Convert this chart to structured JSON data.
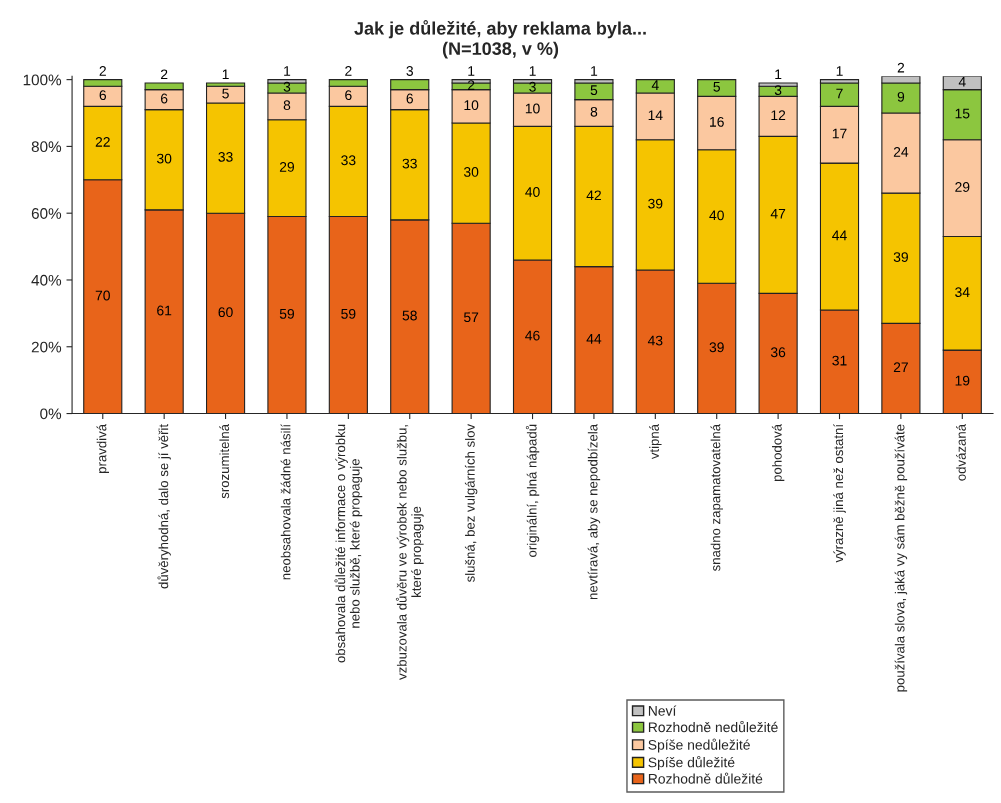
{
  "chart_data": {
    "type": "bar",
    "title": "Jak je důležité, aby reklama byla...",
    "subtitle": "(N=1038, v %)",
    "categories": [
      "pravdivá",
      "důvěryhodná, dalo se jí věřit",
      "srozumitelná",
      "neobsahovala žádné násilí",
      "obsahovala důležité informace o výrobku\nnebo službě, které propaguje",
      "vzbuzovala důvěru ve výrobek nebo službu,\nkteré propaguje",
      "slušná, bez vulgárních slov",
      "originální, plná nápadů",
      "nevtíravá, aby se nepodbízela",
      "vtipná",
      "snadno zapamatovatelná",
      "pohodová",
      "výrazně jiná než ostatní",
      "používala slova, jaká vy sám běžně používáte",
      "odvázaná"
    ],
    "stacked": true,
    "series": [
      {
        "name": "Rozhodně důležité",
        "color": "#e8641a",
        "values": [
          70,
          61,
          60,
          59,
          59,
          58,
          57,
          46,
          44,
          43,
          39,
          36,
          31,
          27,
          19
        ]
      },
      {
        "name": "Spíše důležité",
        "color": "#f5c400",
        "values": [
          22,
          30,
          33,
          29,
          33,
          33,
          30,
          40,
          42,
          39,
          40,
          47,
          44,
          39,
          34
        ]
      },
      {
        "name": "Spíše nedůležité",
        "color": "#fbc8a0",
        "values": [
          6,
          6,
          5,
          8,
          6,
          6,
          10,
          10,
          8,
          14,
          16,
          12,
          17,
          24,
          29
        ]
      },
      {
        "name": "Rozhodně nedůležité",
        "color": "#8cc63f",
        "values": [
          2,
          2,
          1,
          3,
          2,
          3,
          2,
          3,
          5,
          4,
          5,
          3,
          7,
          9,
          15
        ]
      },
      {
        "name": "Neví",
        "color": "#c0c0c0",
        "values": [
          null,
          null,
          null,
          1,
          null,
          null,
          1,
          1,
          1,
          null,
          null,
          1,
          1,
          2,
          4
        ]
      }
    ],
    "ylim": [
      0,
      101
    ],
    "yticks": [
      {
        "value": 0,
        "label": "0%"
      },
      {
        "value": 20,
        "label": "20%"
      },
      {
        "value": 40,
        "label": "40%"
      },
      {
        "value": 60,
        "label": "60%"
      },
      {
        "value": 80,
        "label": "80%"
      },
      {
        "value": 100,
        "label": "100%"
      }
    ],
    "data_labels": true,
    "legend": "bottom right"
  }
}
